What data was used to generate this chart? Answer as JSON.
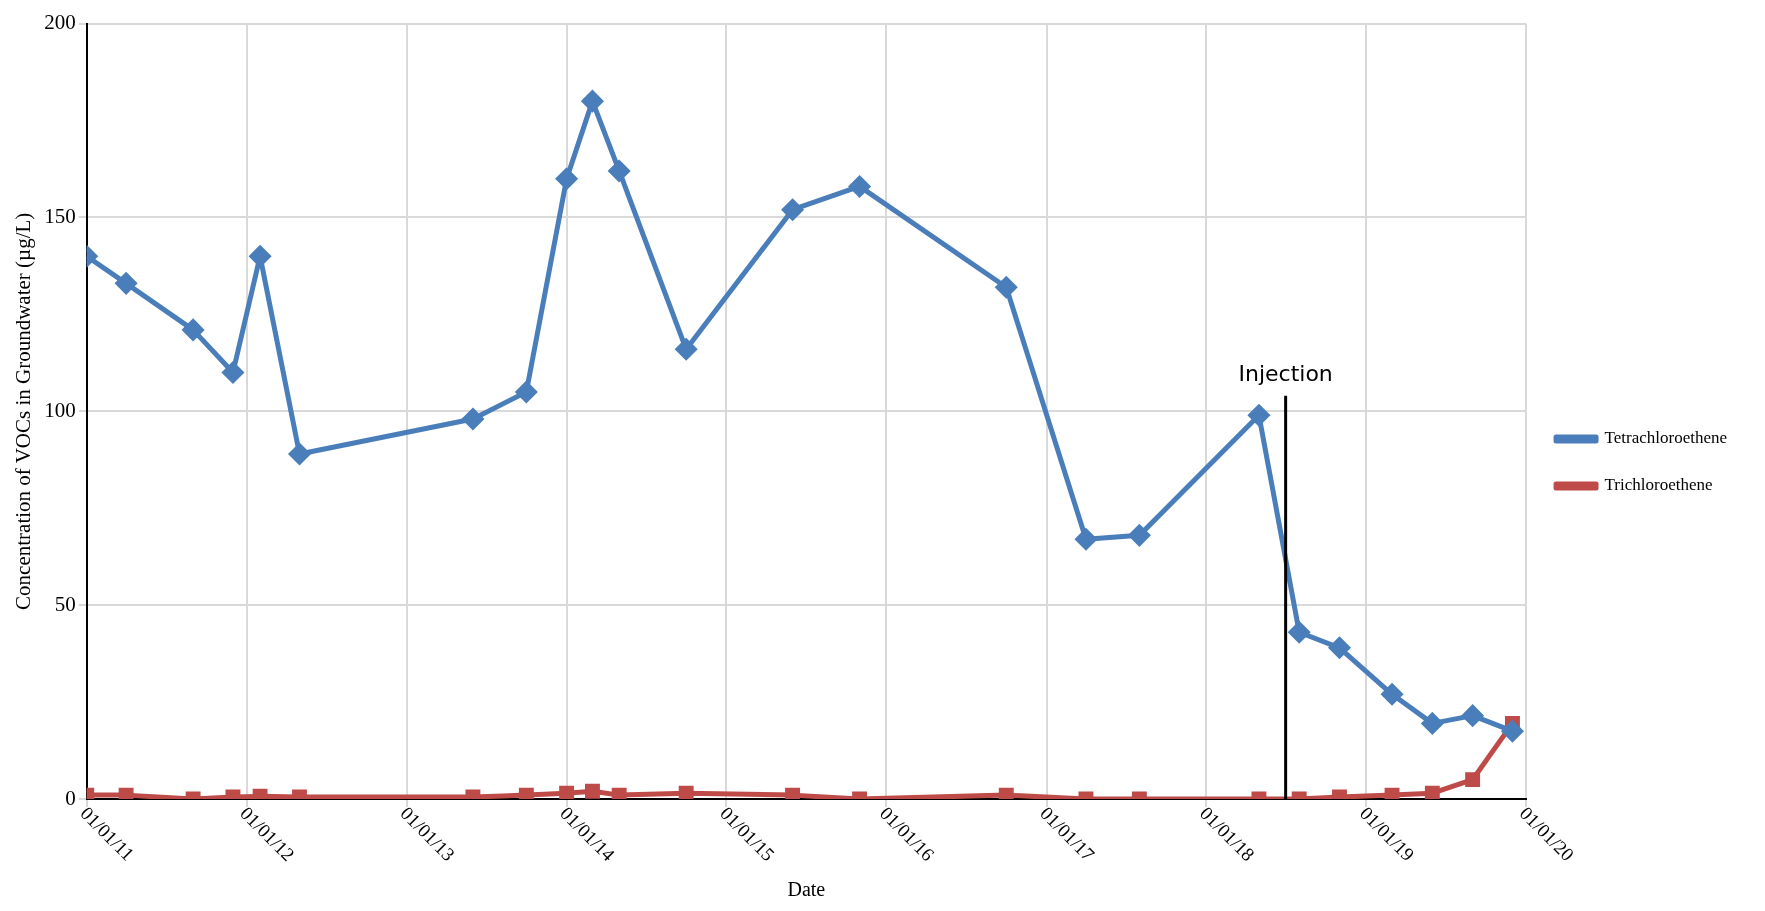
{
  "chart_data": {
    "type": "line",
    "xlabel": "Date",
    "ylabel": "Concentration of VOCs in Groundwater (µg/L)",
    "x": [
      "2011-01-01",
      "2011-04-01",
      "2011-09-01",
      "2011-12-01",
      "2012-02-01",
      "2012-05-01",
      "2013-06-01",
      "2013-10-01",
      "2014-01-01",
      "2014-03-01",
      "2014-05-01",
      "2014-10-01",
      "2015-06-01",
      "2015-11-01",
      "2016-10-01",
      "2017-04-01",
      "2017-08-01",
      "2018-05-01",
      "2018-08-01",
      "2018-11-01",
      "2019-03-01",
      "2019-06-01",
      "2019-09-01",
      "2019-12-01"
    ],
    "series": [
      {
        "name": "Tetrachloroethene",
        "color": "#4a7ebb",
        "marker": "diamond",
        "values": [
          140,
          133,
          121,
          110,
          140,
          89,
          98,
          105,
          160,
          180,
          162,
          116,
          152,
          158,
          132,
          67,
          68,
          99,
          43,
          39,
          27,
          19.5,
          21.5,
          17.5
        ]
      },
      {
        "name": "Trichloroethene",
        "color": "#be4b48",
        "marker": "square",
        "values": [
          1,
          1,
          0,
          0.5,
          0.7,
          0.5,
          0.5,
          1,
          1.5,
          2,
          1,
          1.5,
          1,
          0,
          1,
          0,
          0,
          0,
          0,
          0.5,
          1,
          1.5,
          5,
          19.5
        ]
      }
    ],
    "xlim": [
      "2011-01-01",
      "2020-01-01"
    ],
    "xticks": [
      {
        "value": "2011-01-01",
        "label": "01/01/11"
      },
      {
        "value": "2012-01-01",
        "label": "01/01/12"
      },
      {
        "value": "2013-01-01",
        "label": "01/01/13"
      },
      {
        "value": "2014-01-01",
        "label": "01/01/14"
      },
      {
        "value": "2015-01-01",
        "label": "01/01/15"
      },
      {
        "value": "2016-01-01",
        "label": "01/01/16"
      },
      {
        "value": "2017-01-01",
        "label": "01/01/17"
      },
      {
        "value": "2018-01-01",
        "label": "01/01/18"
      },
      {
        "value": "2019-01-01",
        "label": "01/01/19"
      },
      {
        "value": "2020-01-01",
        "label": "01/01/20"
      }
    ],
    "ylim": [
      0,
      200
    ],
    "yticks": [
      0,
      50,
      100,
      150,
      200
    ],
    "ref_lines": [
      {
        "axis": "x",
        "value": "2018-07-01",
        "label": "Injection",
        "color": "#000000"
      }
    ],
    "grid": true,
    "legend": "right",
    "line_style": "solid"
  }
}
